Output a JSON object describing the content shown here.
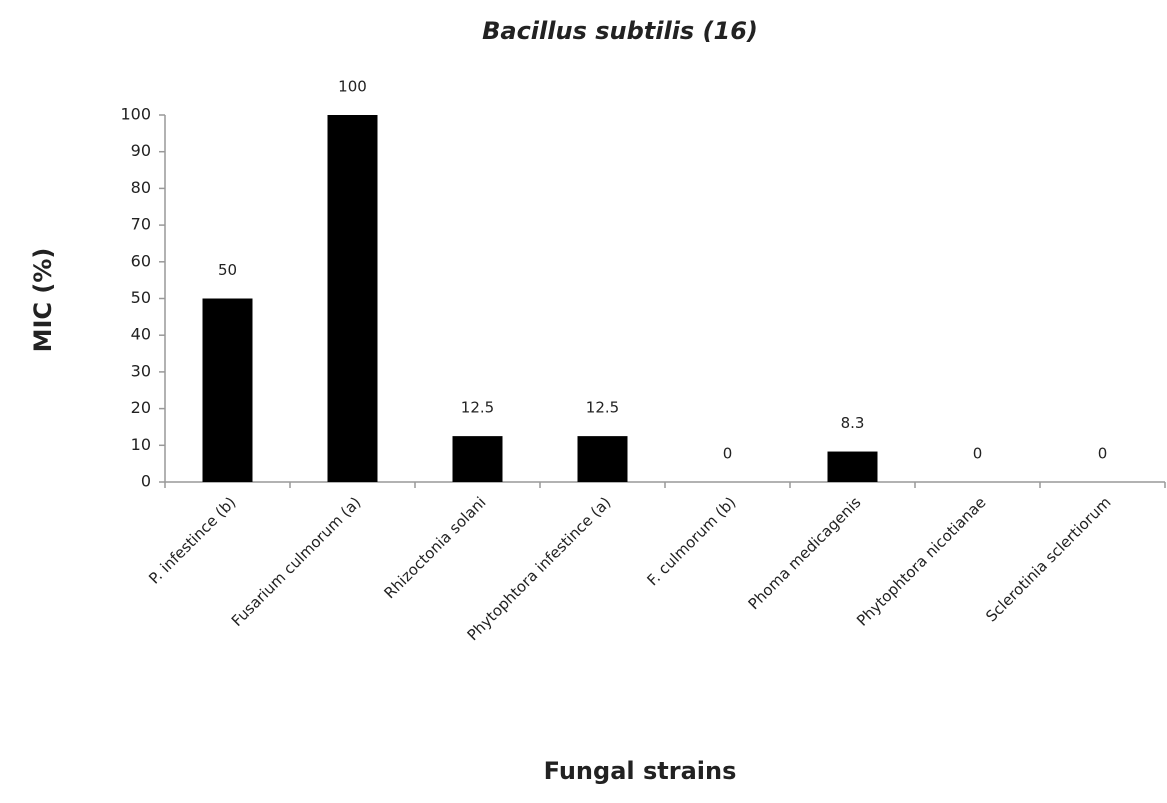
{
  "chart_data": {
    "type": "bar",
    "title": "Bacillus subtilis (16)",
    "x_label": "Fungal strains",
    "y_label": "MIC (%)",
    "categories": [
      "P. infestince (b)",
      "Fusarium culmorum (a)",
      "Rhizoctonia solani",
      "Phytophtora infestince (a)",
      "F. culmorum (b)",
      "Phoma medicagenis",
      "Phytophtora nicotianae",
      "Sclerotinia sclertiorum"
    ],
    "values": [
      50,
      100,
      12.5,
      12.5,
      0,
      8.3,
      0,
      0
    ],
    "color": "#000000",
    "ylim": [
      0,
      100
    ],
    "yticks": [
      0,
      10,
      20,
      30,
      40,
      50,
      60,
      70,
      80,
      90,
      100
    ],
    "grid": false
  }
}
